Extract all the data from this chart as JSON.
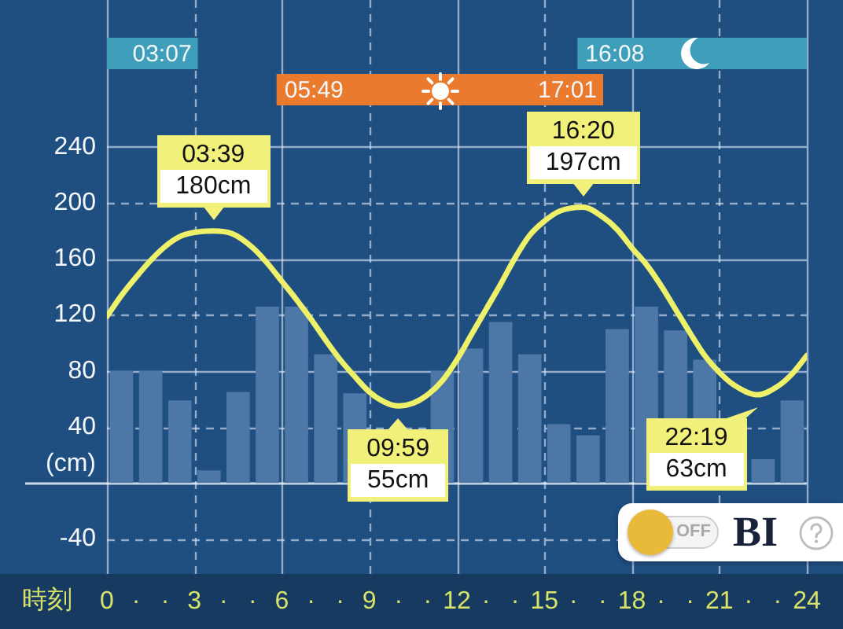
{
  "chart_data": {
    "type": "line",
    "xlabel": "時刻",
    "ylabel": "(cm)",
    "xlim": [
      0,
      24
    ],
    "xticks": [
      0,
      {
        "value": 1,
        "label": "·"
      },
      {
        "value": 2,
        "label": "·"
      },
      3,
      {
        "value": 4,
        "label": "·"
      },
      {
        "value": 5,
        "label": "·"
      },
      6,
      {
        "value": 7,
        "label": "·"
      },
      {
        "value": 8,
        "label": "·"
      },
      9,
      {
        "value": 10,
        "label": "·"
      },
      {
        "value": 11,
        "label": "·"
      },
      12,
      {
        "value": 13,
        "label": "·"
      },
      {
        "value": 14,
        "label": "·"
      },
      15,
      {
        "value": 16,
        "label": "·"
      },
      {
        "value": 17,
        "label": "·"
      },
      18,
      {
        "value": 19,
        "label": "·"
      },
      {
        "value": 20,
        "label": "·"
      },
      21,
      {
        "value": 22,
        "label": "·"
      },
      {
        "value": 23,
        "label": "·"
      },
      24
    ],
    "ylim": [
      -65,
      345
    ],
    "yticks": [
      -40,
      {
        "value": 0,
        "label": null
      },
      40,
      80,
      120,
      160,
      200,
      240
    ],
    "grid": true,
    "legend": false,
    "marker": "none",
    "series": [
      {
        "type": "bar",
        "color": "#4d77a6",
        "x": [
          0.5,
          1.5,
          2.5,
          3.5,
          4.5,
          5.5,
          6.5,
          7.5,
          8.5,
          9.5,
          10.5,
          11.5,
          12.5,
          13.5,
          14.5,
          15.5,
          16.5,
          17.5,
          18.5,
          19.5,
          20.5,
          21.5,
          22.5,
          23.5
        ],
        "values": [
          80,
          80,
          59,
          9,
          65,
          126,
          126,
          92,
          64,
          null,
          null,
          80,
          96,
          115,
          92,
          42,
          34,
          110,
          126,
          109,
          88,
          null,
          17,
          59
        ]
      },
      {
        "color": "#eef06a",
        "x": [
          0,
          0.5,
          1,
          1.5,
          2,
          2.5,
          3,
          3.65,
          4.3,
          5,
          5.5,
          6,
          6.5,
          7,
          7.5,
          8,
          8.5,
          9,
          9.5,
          9.983,
          10.5,
          11,
          11.5,
          12,
          12.5,
          13,
          13.5,
          14,
          14.5,
          15,
          15.5,
          16.333,
          17,
          17.5,
          18,
          18.5,
          19,
          19.5,
          20,
          20.5,
          21,
          21.5,
          22.317,
          23,
          23.5,
          24
        ],
        "values": [
          119,
          134,
          147,
          159,
          169,
          176,
          179,
          180,
          178,
          168,
          157,
          144,
          131,
          117,
          102,
          88,
          76,
          65,
          58,
          55,
          57,
          63,
          73,
          88,
          106,
          124,
          142,
          161,
          177,
          187,
          194,
          197,
          190,
          181,
          168,
          156,
          141,
          124,
          107,
          91,
          79,
          70,
          63,
          69,
          78,
          91
        ]
      }
    ],
    "bands": [
      {
        "axis": "x",
        "from": 0,
        "to": 3.117,
        "label": "03:07",
        "color": "#3f9fba"
      },
      {
        "axis": "x",
        "from": 16.133,
        "to": 24,
        "label": "16:08",
        "color": "#3f9fba"
      },
      {
        "axis": "x",
        "from": 5.817,
        "to": 17.017,
        "label": "05:49",
        "color": "#ea7a2e"
      }
    ],
    "annotations": [
      {
        "text": "03:39\n180cm",
        "x": 3.65,
        "y": 180
      },
      {
        "text": "09:59\n55cm",
        "x": 9.983,
        "y": 55
      },
      {
        "text": "16:20\n197cm",
        "x": 16.333,
        "y": 197
      },
      {
        "text": "22:19\n63cm",
        "x": 22.317,
        "y": 63
      },
      {
        "text": "17:01",
        "x": 17.017
      },
      "OFF",
      "BI"
    ]
  }
}
